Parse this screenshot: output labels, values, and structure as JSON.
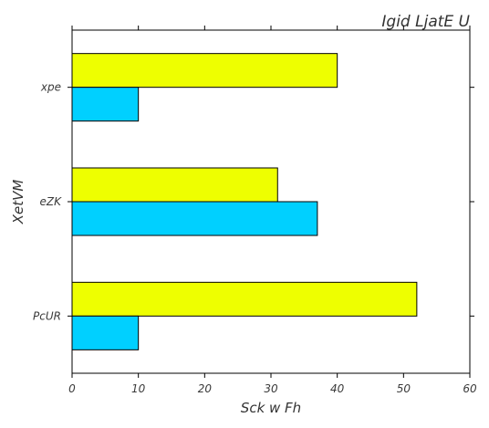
{
  "chart_data": {
    "type": "bar",
    "orientation": "horizontal",
    "title": "Igid LjatE U",
    "xlabel": "Sck w Fh",
    "ylabel": "XetVM",
    "categories": [
      "xpe",
      "eZK",
      "PcUR"
    ],
    "series": [
      {
        "color": "#eeff00",
        "values": [
          40,
          31,
          52
        ]
      },
      {
        "color": "#00d0ff",
        "values": [
          10,
          37,
          10
        ]
      }
    ],
    "xlim": [
      0,
      60
    ],
    "xticks": [
      "0",
      "10",
      "20",
      "30",
      "40",
      "50",
      "60"
    ],
    "grid": false,
    "legend": "none"
  }
}
